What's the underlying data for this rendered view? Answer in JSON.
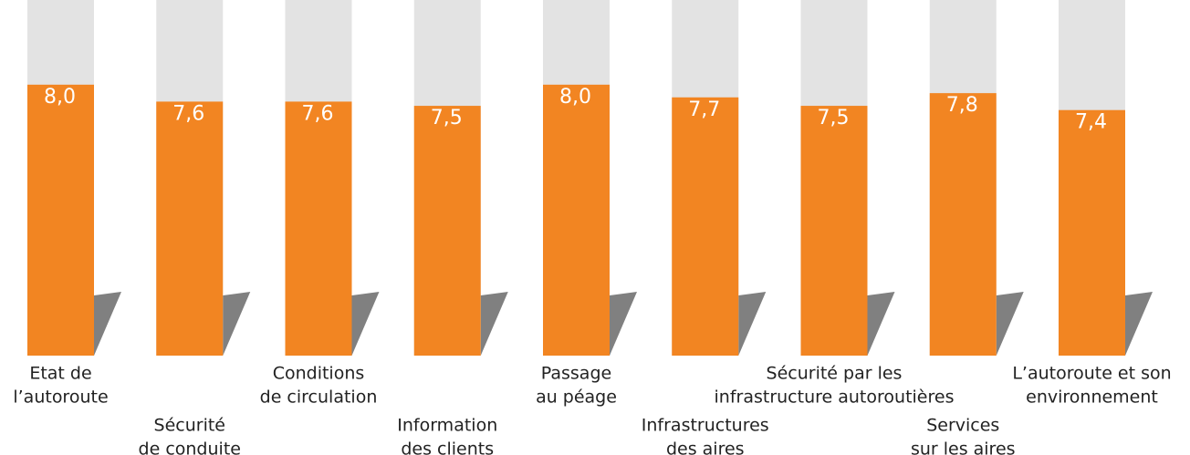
{
  "chart_data": {
    "type": "bar",
    "categories": [
      [
        "Etat de",
        "l’autoroute"
      ],
      [
        "Sécurité",
        "de conduite"
      ],
      [
        "Conditions",
        "de circulation"
      ],
      [
        "Information",
        "des clients"
      ],
      [
        "Passage",
        "au péage"
      ],
      [
        "Infrastructures",
        "des aires"
      ],
      [
        "Sécurité par les",
        "infrastructure autoroutières"
      ],
      [
        "Services",
        "sur les aires"
      ],
      [
        "L’autoroute et son",
        "environnement"
      ]
    ],
    "values": [
      8.0,
      7.6,
      7.6,
      7.5,
      8.0,
      7.7,
      7.5,
      7.8,
      7.4
    ],
    "value_labels": [
      "8,0",
      "7,6",
      "7,6",
      "7,5",
      "8,0",
      "7,7",
      "7,5",
      "7,8",
      "7,4"
    ],
    "color": "#f28522",
    "background_color": "#e3e3e3",
    "shadow_color": "#808080",
    "ylim": [
      1.6,
      10
    ]
  }
}
